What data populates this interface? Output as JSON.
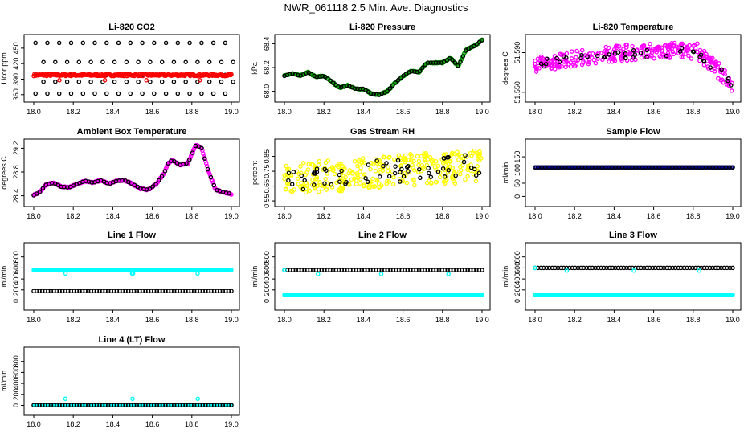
{
  "page": {
    "title": "NWR_061118  2.5 Min. Ave. Diagnostics"
  },
  "chart_data": [
    {
      "type": "scatter",
      "title": "Li-820 CO2",
      "ylabel": "Licor ppm",
      "xlim": [
        18.0,
        19.0
      ],
      "ylim": [
        355,
        470
      ],
      "xticks": [
        "18.0",
        "18.2",
        "18.4",
        "18.6",
        "18.8",
        "19.0"
      ],
      "yticks": [
        {
          "v": 360,
          "t": "360"
        },
        {
          "v": 390,
          "t": "390"
        },
        {
          "v": 420,
          "t": "420"
        },
        {
          "v": 450,
          "t": "450"
        }
      ],
      "series": [
        {
          "color": "#000000",
          "kind": "levels",
          "levels": [
            460,
            423,
            398,
            385,
            362
          ],
          "step": 0.03,
          "count": 34
        },
        {
          "color": "#ff0000",
          "kind": "band",
          "center": 398,
          "amp": 2,
          "n": 260
        },
        {
          "color": "#ff0000",
          "kind": "points",
          "x": [
            18.13,
            18.36,
            18.57,
            18.84
          ],
          "y": [
            388,
            388,
            388,
            388
          ]
        }
      ]
    },
    {
      "type": "scatter",
      "title": "Li-820 Pressure",
      "ylabel": "kPa",
      "xlim": [
        18.0,
        19.0
      ],
      "ylim": [
        67.95,
        68.45
      ],
      "xticks": [
        "18.0",
        "18.2",
        "18.4",
        "18.6",
        "18.8",
        "19.0"
      ],
      "yticks": [
        {
          "v": 68.0,
          "t": "68.0"
        },
        {
          "v": 68.2,
          "t": "68.2"
        },
        {
          "v": 68.4,
          "t": "68.4"
        }
      ],
      "series": [
        {
          "color": "#00a000",
          "kind": "curve",
          "x": [
            18.0,
            18.04,
            18.08,
            18.12,
            18.16,
            18.2,
            18.24,
            18.28,
            18.32,
            18.36,
            18.4,
            18.44,
            18.48,
            18.52,
            18.56,
            18.6,
            18.64,
            18.68,
            18.72,
            18.76,
            18.8,
            18.84,
            18.88,
            18.92,
            18.96,
            19.0
          ],
          "y": [
            68.13,
            68.15,
            68.13,
            68.16,
            68.12,
            68.13,
            68.08,
            68.03,
            68.05,
            68.02,
            68.02,
            67.98,
            67.97,
            68.0,
            68.07,
            68.13,
            68.17,
            68.16,
            68.24,
            68.24,
            68.24,
            68.28,
            68.21,
            68.35,
            68.38,
            68.43
          ],
          "n": 220
        },
        {
          "color": "#000000",
          "kind": "curve-sparse",
          "every": 3
        }
      ]
    },
    {
      "type": "scatter",
      "title": "Li-820 Temperature",
      "ylabel": "degrees C",
      "xlim": [
        18.0,
        19.0
      ],
      "ylim": [
        51.545,
        51.605
      ],
      "xticks": [
        "18.0",
        "18.2",
        "18.4",
        "18.6",
        "18.8",
        "19.0"
      ],
      "yticks": [
        {
          "v": 51.55,
          "t": "51.550"
        },
        {
          "v": 51.59,
          "t": "51.590"
        }
      ],
      "series": [
        {
          "color": "#ff00ff",
          "kind": "arch",
          "base": 51.578,
          "peak": 51.592,
          "end": 51.558,
          "spread": 0.008,
          "n": 300
        },
        {
          "color": "#000000",
          "kind": "arch",
          "base": 51.578,
          "peak": 51.591,
          "end": 51.558,
          "spread": 0.005,
          "n": 40
        }
      ]
    },
    {
      "type": "scatter",
      "title": "Ambient Box Temperature",
      "ylabel": "degrees C",
      "xlim": [
        18.0,
        19.0
      ],
      "ylim": [
        28.3,
        29.3
      ],
      "xticks": [
        "18.0",
        "18.2",
        "18.4",
        "18.6",
        "18.8",
        "19.0"
      ],
      "yticks": [
        {
          "v": 28.4,
          "t": "28.4"
        },
        {
          "v": 28.8,
          "t": "28.8"
        },
        {
          "v": 29.2,
          "t": "29.2"
        }
      ],
      "series": [
        {
          "color": "#ff00ff",
          "kind": "curve",
          "x": [
            18.0,
            18.03,
            18.06,
            18.1,
            18.14,
            18.18,
            18.22,
            18.26,
            18.3,
            18.34,
            18.38,
            18.42,
            18.46,
            18.5,
            18.54,
            18.58,
            18.62,
            18.66,
            18.68,
            18.7,
            18.74,
            18.78,
            18.82,
            18.85,
            18.88,
            18.92,
            18.96,
            19.0
          ],
          "y": [
            28.41,
            28.46,
            28.58,
            28.62,
            28.55,
            28.54,
            28.6,
            28.65,
            28.62,
            28.66,
            28.6,
            28.65,
            28.66,
            28.6,
            28.52,
            28.5,
            28.6,
            28.78,
            28.95,
            29.0,
            28.92,
            28.95,
            29.25,
            29.2,
            28.85,
            28.5,
            28.46,
            28.43
          ],
          "n": 260
        },
        {
          "color": "#000000",
          "kind": "curve-sparse",
          "every": 4
        }
      ]
    },
    {
      "type": "scatter",
      "title": "Gas Stream RH",
      "ylabel": "percent",
      "xlim": [
        18.0,
        19.0
      ],
      "ylim": [
        0.545,
        0.945
      ],
      "xticks": [
        "18.0",
        "18.2",
        "18.4",
        "18.6",
        "18.8",
        "19.0"
      ],
      "yticks": [
        {
          "v": 0.55,
          "t": "0.55"
        },
        {
          "v": 0.65,
          "t": "0.65"
        },
        {
          "v": 0.75,
          "t": "0.75"
        },
        {
          "v": 0.85,
          "t": "0.85"
        }
      ],
      "series": [
        {
          "color": "#ffff00",
          "kind": "noise",
          "from": 0.7,
          "to": 0.79,
          "spread": 0.11,
          "n": 320
        },
        {
          "color": "#000000",
          "kind": "noise",
          "from": 0.7,
          "to": 0.79,
          "spread": 0.08,
          "n": 60
        }
      ]
    },
    {
      "type": "scatter",
      "title": "Sample Flow",
      "ylabel": "ml/min",
      "xlim": [
        18.0,
        19.0
      ],
      "ylim": [
        -20,
        205
      ],
      "xticks": [
        "18.0",
        "18.2",
        "18.4",
        "18.6",
        "18.8",
        "19.0"
      ],
      "yticks": [
        {
          "v": 0,
          "t": "0"
        },
        {
          "v": 50,
          "t": "50"
        },
        {
          "v": 100,
          "t": "100"
        },
        {
          "v": 150,
          "t": "150"
        }
      ],
      "series": [
        {
          "color": "#000080",
          "kind": "flat",
          "y": 110,
          "n": 160
        },
        {
          "color": "#000000",
          "kind": "flat",
          "y": 110,
          "n": 60
        }
      ]
    },
    {
      "type": "scatter",
      "title": "Line 1 Flow",
      "ylabel": "ml/min",
      "xlim": [
        18.0,
        19.0
      ],
      "ylim": [
        -80,
        1000
      ],
      "xticks": [
        "18.0",
        "18.2",
        "18.4",
        "18.6",
        "18.8",
        "19.0"
      ],
      "yticks": [
        {
          "v": 0,
          "t": "0"
        },
        {
          "v": 200,
          "t": "200"
        },
        {
          "v": 400,
          "t": "400"
        },
        {
          "v": 600,
          "t": "600"
        },
        {
          "v": 800,
          "t": "800"
        }
      ],
      "series": [
        {
          "color": "#00ffff",
          "kind": "flat",
          "y": 560,
          "n": 200,
          "dips": [
            18.16,
            18.5,
            18.83
          ],
          "dipy": 500
        },
        {
          "color": "#000000",
          "kind": "flat",
          "y": 180,
          "n": 70
        }
      ]
    },
    {
      "type": "scatter",
      "title": "Line 2 Flow",
      "ylabel": "ml/min",
      "xlim": [
        18.0,
        19.0
      ],
      "ylim": [
        -80,
        1000
      ],
      "xticks": [
        "18.0",
        "18.2",
        "18.4",
        "18.6",
        "18.8",
        "19.0"
      ],
      "yticks": [
        {
          "v": 0,
          "t": "0"
        },
        {
          "v": 200,
          "t": "200"
        },
        {
          "v": 400,
          "t": "400"
        },
        {
          "v": 600,
          "t": "600"
        },
        {
          "v": 800,
          "t": "800"
        }
      ],
      "series": [
        {
          "color": "#00ffff",
          "kind": "flat",
          "y": 110,
          "n": 200
        },
        {
          "color": "#000000",
          "kind": "flat",
          "y": 560,
          "n": 70
        },
        {
          "color": "#00ffff",
          "kind": "points",
          "x": [
            18.0,
            18.17,
            18.49,
            18.83
          ],
          "y": [
            560,
            490,
            490,
            490
          ]
        }
      ]
    },
    {
      "type": "scatter",
      "title": "Line 3 Flow",
      "ylabel": "ml/min",
      "xlim": [
        18.0,
        19.0
      ],
      "ylim": [
        -80,
        1000
      ],
      "xticks": [
        "18.0",
        "18.2",
        "18.4",
        "18.6",
        "18.8",
        "19.0"
      ],
      "yticks": [
        {
          "v": 0,
          "t": "0"
        },
        {
          "v": 200,
          "t": "200"
        },
        {
          "v": 400,
          "t": "400"
        },
        {
          "v": 600,
          "t": "600"
        },
        {
          "v": 800,
          "t": "800"
        }
      ],
      "series": [
        {
          "color": "#00ffff",
          "kind": "flat",
          "y": 110,
          "n": 200
        },
        {
          "color": "#000000",
          "kind": "flat",
          "y": 600,
          "n": 70
        },
        {
          "color": "#00ffff",
          "kind": "points",
          "x": [
            18.0,
            18.16,
            18.5,
            18.83
          ],
          "y": [
            600,
            550,
            550,
            550
          ]
        }
      ]
    },
    {
      "type": "scatter",
      "title": "Line 4 (LT) Flow",
      "ylabel": "ml/min",
      "xlim": [
        18.0,
        19.0
      ],
      "ylim": [
        -80,
        1000
      ],
      "xticks": [
        "18.0",
        "18.2",
        "18.4",
        "18.6",
        "18.8",
        "19.0"
      ],
      "yticks": [
        {
          "v": 0,
          "t": "0"
        },
        {
          "v": 200,
          "t": "200"
        },
        {
          "v": 400,
          "t": "400"
        },
        {
          "v": 600,
          "t": "600"
        },
        {
          "v": 800,
          "t": "800"
        }
      ],
      "series": [
        {
          "color": "#00ffff",
          "kind": "flat",
          "y": 5,
          "n": 200
        },
        {
          "color": "#000000",
          "kind": "flat",
          "y": 5,
          "n": 70
        },
        {
          "color": "#00ffff",
          "kind": "points",
          "x": [
            18.16,
            18.5,
            18.83
          ],
          "y": [
            120,
            120,
            120
          ]
        }
      ]
    }
  ]
}
